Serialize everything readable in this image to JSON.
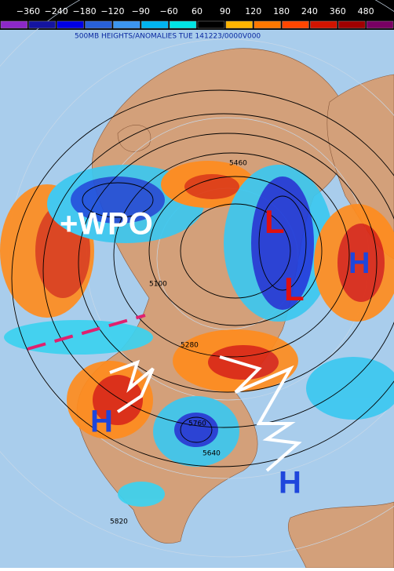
{
  "legend": {
    "labels": [
      "−360",
      "−240",
      "−180",
      "−120",
      "−90",
      "−60",
      "60",
      "90",
      "120",
      "180",
      "240",
      "360",
      "480"
    ],
    "colors": [
      "#8c28c8",
      "#1414a0",
      "#0000e6",
      "#2860d8",
      "#3c96f0",
      "#00b4f0",
      "#00e6e6",
      "#000000",
      "#ffb400",
      "#ff7800",
      "#ff4600",
      "#d21400",
      "#a00000",
      "#780064"
    ]
  },
  "header": {
    "title": "500MB HEIGHTS/ANOMALIES TUE 141223/0000V000"
  },
  "contour_labels": [
    "5460",
    "5100",
    "5280",
    "5760",
    "5640",
    "5820"
  ],
  "annotations": {
    "wpo": "+WPO",
    "lows": [
      "L",
      "L"
    ],
    "highs": [
      "H",
      "H",
      "H"
    ]
  }
}
